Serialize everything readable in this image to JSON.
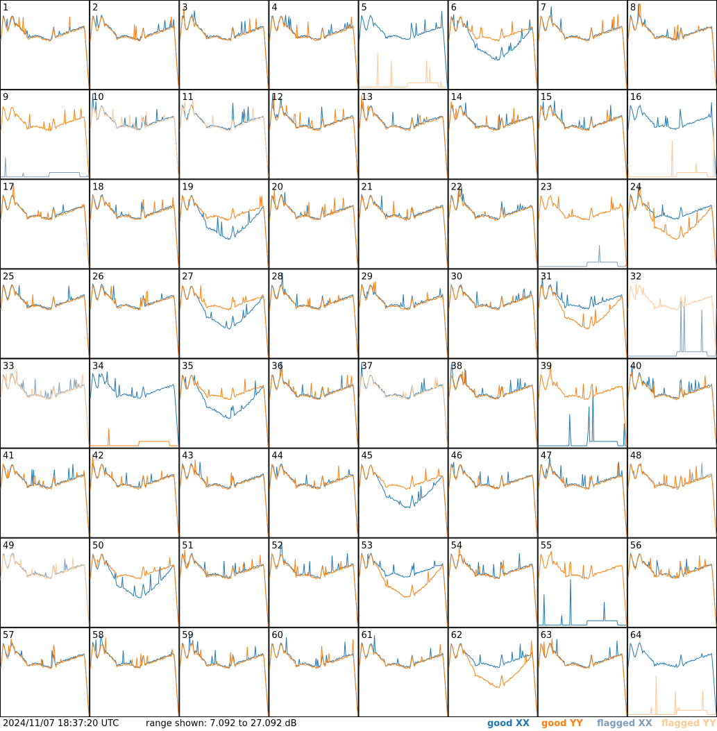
{
  "footer": {
    "timestamp": "2024/11/07 18:37:20 UTC",
    "range_text": "range shown: 7.092 to 27.092 dB"
  },
  "legend": [
    {
      "id": "good-xx",
      "label": "good XX",
      "color": "#1f77b4"
    },
    {
      "id": "good-yy",
      "label": "good YY",
      "color": "#ff7f0e"
    },
    {
      "id": "flagged-xx",
      "label": "flagged XX",
      "color": "#7f9db9"
    },
    {
      "id": "flagged-yy",
      "label": "flagged YY",
      "color": "#ffc896"
    }
  ],
  "chart_data": {
    "type": "line",
    "layout": "8x8 small multiples, one panel per antenna (1-64)",
    "y_range_db": [
      7.092,
      27.092
    ],
    "xlabel": "",
    "ylabel": "",
    "series_names": [
      "XX",
      "YY"
    ],
    "panels": [
      {
        "id": 1,
        "xx": "good",
        "yy": "good",
        "note": "XX above YY in mid band"
      },
      {
        "id": 2,
        "xx": "good",
        "yy": "good"
      },
      {
        "id": 3,
        "xx": "good",
        "yy": "good"
      },
      {
        "id": 4,
        "xx": "good",
        "yy": "good"
      },
      {
        "id": 5,
        "xx": "good",
        "yy": "flagged",
        "note": "YY near bottom"
      },
      {
        "id": 6,
        "xx": "good",
        "yy": "good",
        "note": "XX low mid band"
      },
      {
        "id": 7,
        "xx": "good",
        "yy": "good"
      },
      {
        "id": 8,
        "xx": "good",
        "yy": "good"
      },
      {
        "id": 9,
        "xx": "flagged",
        "yy": "good",
        "note": "XX near bottom"
      },
      {
        "id": 10,
        "xx": "good",
        "yy": "flagged"
      },
      {
        "id": 11,
        "xx": "good",
        "yy": "flagged"
      },
      {
        "id": 12,
        "xx": "good",
        "yy": "good"
      },
      {
        "id": 13,
        "xx": "good",
        "yy": "good"
      },
      {
        "id": 14,
        "xx": "good",
        "yy": "good"
      },
      {
        "id": 15,
        "xx": "good",
        "yy": "good"
      },
      {
        "id": 16,
        "xx": "good",
        "yy": "flagged",
        "note": "YY near bottom"
      },
      {
        "id": 17,
        "xx": "good",
        "yy": "good"
      },
      {
        "id": 18,
        "xx": "good",
        "yy": "good"
      },
      {
        "id": 19,
        "xx": "good",
        "yy": "good",
        "note": "XX low mid band"
      },
      {
        "id": 20,
        "xx": "good",
        "yy": "good"
      },
      {
        "id": 21,
        "xx": "good",
        "yy": "good"
      },
      {
        "id": 22,
        "xx": "good",
        "yy": "good"
      },
      {
        "id": 23,
        "xx": "flagged",
        "yy": "good",
        "note": "XX near bottom"
      },
      {
        "id": 24,
        "xx": "good",
        "yy": "good",
        "note": "YY low mid band"
      },
      {
        "id": 25,
        "xx": "good",
        "yy": "good"
      },
      {
        "id": 26,
        "xx": "good",
        "yy": "good"
      },
      {
        "id": 27,
        "xx": "good",
        "yy": "good",
        "note": "XX low mid band"
      },
      {
        "id": 28,
        "xx": "good",
        "yy": "good"
      },
      {
        "id": 29,
        "xx": "good",
        "yy": "good"
      },
      {
        "id": 30,
        "xx": "good",
        "yy": "good"
      },
      {
        "id": 31,
        "xx": "good",
        "yy": "good",
        "note": "YY low mid band"
      },
      {
        "id": 32,
        "xx": "flagged",
        "yy": "flagged",
        "note": "XX near bottom"
      },
      {
        "id": 33,
        "xx": "flagged",
        "yy": "flagged"
      },
      {
        "id": 34,
        "xx": "good",
        "yy": "good",
        "note": "YY near bottom"
      },
      {
        "id": 35,
        "xx": "good",
        "yy": "good",
        "note": "XX low mid band"
      },
      {
        "id": 36,
        "xx": "good",
        "yy": "good"
      },
      {
        "id": 37,
        "xx": "good",
        "yy": "flagged"
      },
      {
        "id": 38,
        "xx": "good",
        "yy": "good"
      },
      {
        "id": 39,
        "xx": "good",
        "yy": "good",
        "note": "XX near bottom"
      },
      {
        "id": 40,
        "xx": "good",
        "yy": "good"
      },
      {
        "id": 41,
        "xx": "good",
        "yy": "good"
      },
      {
        "id": 42,
        "xx": "good",
        "yy": "good"
      },
      {
        "id": 43,
        "xx": "good",
        "yy": "good"
      },
      {
        "id": 44,
        "xx": "good",
        "yy": "good"
      },
      {
        "id": 45,
        "xx": "good",
        "yy": "good",
        "note": "XX low mid band"
      },
      {
        "id": 46,
        "xx": "good",
        "yy": "good"
      },
      {
        "id": 47,
        "xx": "good",
        "yy": "good"
      },
      {
        "id": 48,
        "xx": "flagged",
        "yy": "good"
      },
      {
        "id": 49,
        "xx": "flagged",
        "yy": "flagged"
      },
      {
        "id": 50,
        "xx": "good",
        "yy": "good",
        "note": "XX low mid band"
      },
      {
        "id": 51,
        "xx": "good",
        "yy": "good"
      },
      {
        "id": 52,
        "xx": "good",
        "yy": "good"
      },
      {
        "id": 53,
        "xx": "good",
        "yy": "good",
        "note": "YY low mid band"
      },
      {
        "id": 54,
        "xx": "good",
        "yy": "good"
      },
      {
        "id": 55,
        "xx": "good",
        "yy": "good",
        "note": "XX near bottom"
      },
      {
        "id": 56,
        "xx": "good",
        "yy": "good"
      },
      {
        "id": 57,
        "xx": "good",
        "yy": "good"
      },
      {
        "id": 58,
        "xx": "good",
        "yy": "good"
      },
      {
        "id": 59,
        "xx": "good",
        "yy": "good"
      },
      {
        "id": 60,
        "xx": "good",
        "yy": "good"
      },
      {
        "id": 61,
        "xx": "good",
        "yy": "good"
      },
      {
        "id": 62,
        "xx": "good",
        "yy": "good",
        "note": "YY low mid band"
      },
      {
        "id": 63,
        "xx": "good",
        "yy": "good"
      },
      {
        "id": 64,
        "xx": "good",
        "yy": "flagged",
        "note": "YY near bottom"
      }
    ]
  }
}
